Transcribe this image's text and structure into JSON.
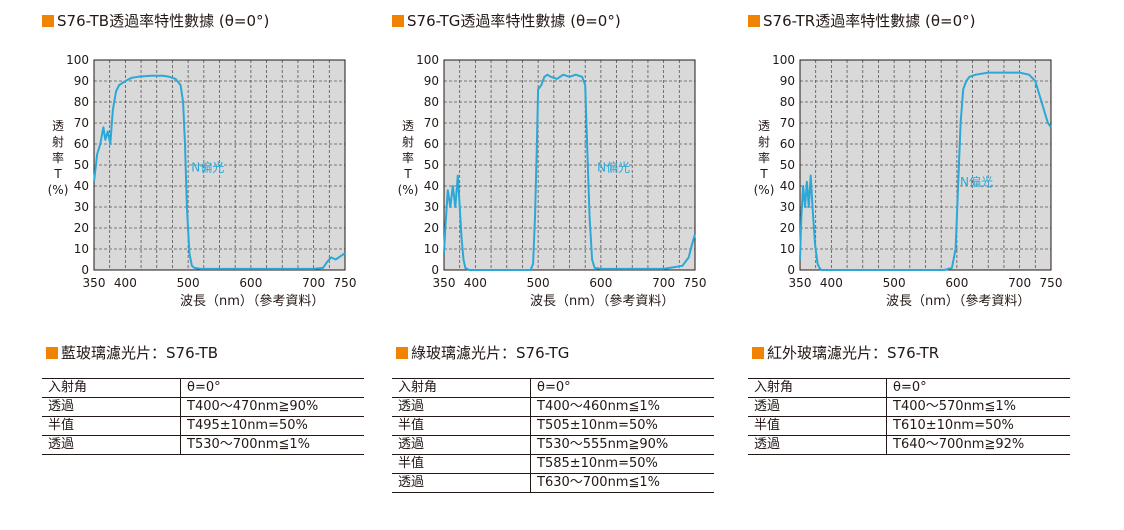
{
  "colors": {
    "accent": "#f08300",
    "curve": "#2aa8d8",
    "plot_bg": "#d9d9d9",
    "grid": "#555555"
  },
  "chart_data": [
    {
      "type": "line",
      "title": "S76-TB透過率特性數據 (θ=0°)",
      "ylabel": "透射率T(%)",
      "xlabel": "波長（nm）（參考資料）",
      "xlim": [
        350,
        750
      ],
      "ylim": [
        0,
        100
      ],
      "x_ticks": [
        350,
        400,
        500,
        600,
        700,
        750
      ],
      "y_ticks": [
        0,
        10,
        20,
        30,
        40,
        50,
        60,
        70,
        80,
        90,
        100
      ],
      "grid": true,
      "annotation": {
        "text": "N偏光",
        "x": 505,
        "y": 47
      },
      "series": [
        {
          "name": "N偏光",
          "x": [
            350,
            355,
            360,
            365,
            368,
            372,
            376,
            380,
            385,
            390,
            400,
            410,
            420,
            440,
            460,
            470,
            480,
            488,
            492,
            495,
            498,
            502,
            506,
            510,
            520,
            600,
            700,
            715,
            722,
            728,
            735,
            745,
            750
          ],
          "y": [
            42,
            55,
            60,
            68,
            62,
            66,
            60,
            76,
            85,
            88,
            90,
            91.5,
            92,
            92.5,
            92.5,
            92,
            91,
            88,
            80,
            60,
            30,
            8,
            2,
            1,
            0.5,
            0.5,
            0.5,
            1,
            4,
            6,
            5,
            7,
            8
          ]
        }
      ]
    },
    {
      "type": "line",
      "title": "S76-TG透過率特性數據 (θ=0°)",
      "ylabel": "透射率T(%)",
      "xlabel": "波長（nm）（參考資料）",
      "xlim": [
        350,
        750
      ],
      "ylim": [
        0,
        100
      ],
      "x_ticks": [
        350,
        400,
        500,
        600,
        700,
        750
      ],
      "y_ticks": [
        0,
        10,
        20,
        30,
        40,
        50,
        60,
        70,
        80,
        90,
        100
      ],
      "grid": true,
      "annotation": {
        "text": "N偏光",
        "x": 594,
        "y": 47
      },
      "series": [
        {
          "name": "N偏光",
          "x": [
            350,
            352,
            356,
            360,
            364,
            368,
            372,
            375,
            378,
            381,
            384,
            387,
            390,
            400,
            450,
            488,
            492,
            495,
            498,
            500,
            505,
            510,
            515,
            520,
            530,
            540,
            550,
            560,
            570,
            575,
            578,
            582,
            586,
            590,
            600,
            700,
            730,
            740,
            745,
            750
          ],
          "y": [
            8,
            20,
            38,
            30,
            40,
            30,
            45,
            30,
            15,
            5,
            1,
            0.5,
            0,
            0,
            0,
            0,
            3,
            25,
            60,
            86,
            88,
            92,
            93,
            92,
            91,
            93,
            92,
            93,
            92,
            88,
            60,
            25,
            5,
            1,
            0.5,
            0.5,
            2,
            6,
            12,
            17
          ]
        }
      ]
    },
    {
      "type": "line",
      "title": "S76-TR透過率特性數據 (θ=0°)",
      "ylabel": "透射率T(%)",
      "xlabel": "波長（nm）（參考資料）",
      "xlim": [
        350,
        750
      ],
      "ylim": [
        0,
        100
      ],
      "x_ticks": [
        350,
        400,
        500,
        600,
        700,
        750
      ],
      "y_ticks": [
        0,
        10,
        20,
        30,
        40,
        50,
        60,
        70,
        80,
        90,
        100
      ],
      "grid": true,
      "annotation": {
        "text": "N偏光",
        "x": 605,
        "y": 40
      },
      "series": [
        {
          "name": "N偏光",
          "x": [
            350,
            352,
            355,
            358,
            361,
            364,
            367,
            370,
            374,
            378,
            381,
            384,
            390,
            400,
            500,
            580,
            592,
            598,
            602,
            606,
            610,
            615,
            620,
            630,
            650,
            700,
            715,
            725,
            730,
            735,
            740,
            745,
            750
          ],
          "y": [
            5,
            25,
            40,
            30,
            42,
            30,
            45,
            30,
            12,
            3,
            1,
            0,
            0,
            0,
            0,
            0,
            1,
            10,
            40,
            70,
            86,
            90,
            92,
            93,
            94,
            94,
            93,
            90,
            85,
            80,
            75,
            70,
            68
          ]
        }
      ]
    }
  ],
  "specs": [
    {
      "title": "藍玻璃濾光片：S76-TB",
      "rows": [
        [
          "入射角",
          "θ=0°"
        ],
        [
          "透過",
          "T400～470nm≧90%"
        ],
        [
          "半值",
          "T495±10nm=50%"
        ],
        [
          "透過",
          "T530～700nm≦1%"
        ]
      ]
    },
    {
      "title": "綠玻璃濾光片：S76-TG",
      "rows": [
        [
          "入射角",
          "θ=0°"
        ],
        [
          "透過",
          "T400～460nm≦1%"
        ],
        [
          "半值",
          "T505±10nm=50%"
        ],
        [
          "透過",
          "T530～555nm≧90%"
        ],
        [
          "半值",
          "T585±10nm=50%"
        ],
        [
          "透過",
          "T630～700nm≦1%"
        ]
      ]
    },
    {
      "title": "紅外玻璃濾光片：S76-TR",
      "rows": [
        [
          "入射角",
          "θ=0°"
        ],
        [
          "透過",
          "T400～570nm≦1%"
        ],
        [
          "半值",
          "T610±10nm=50%"
        ],
        [
          "透過",
          "T640～700nm≧92%"
        ]
      ]
    }
  ]
}
